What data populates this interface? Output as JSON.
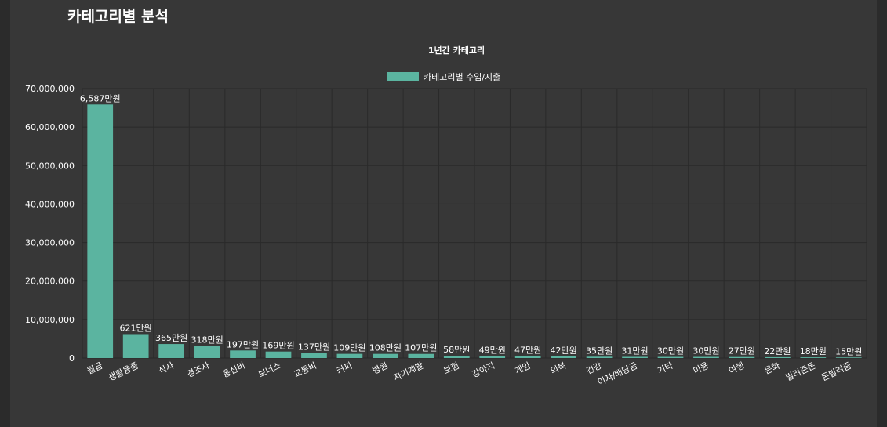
{
  "page": {
    "title": "카테고리별 분석"
  },
  "colors": {
    "bar": "#5bb4a0",
    "panel": "#373737",
    "background": "#2b2b2b",
    "grid": "#2a2a2a",
    "text": "#ffffff"
  },
  "chart_data": {
    "type": "bar",
    "title": "1년간 카테고리",
    "legend": {
      "label": "카테고리별 수입/지출",
      "position": "top"
    },
    "xlabel": "",
    "ylabel": "",
    "ylim": [
      0,
      70000000
    ],
    "yticks": [
      0,
      10000000,
      20000000,
      30000000,
      40000000,
      50000000,
      60000000,
      70000000
    ],
    "ytick_labels": [
      "0",
      "10,000,000",
      "20,000,000",
      "30,000,000",
      "40,000,000",
      "50,000,000",
      "60,000,000",
      "70,000,000"
    ],
    "grid": true,
    "categories": [
      "월급",
      "생활용품",
      "식사",
      "경조사",
      "통신비",
      "보너스",
      "교통비",
      "커피",
      "병원",
      "자기계발",
      "보험",
      "강아지",
      "게임",
      "의복",
      "건강",
      "이자/배당금",
      "기타",
      "미용",
      "여행",
      "문화",
      "빌려준돈",
      "돈빌려줌"
    ],
    "values": [
      65870000,
      6210000,
      3650000,
      3180000,
      1970000,
      1690000,
      1370000,
      1090000,
      1080000,
      1070000,
      580000,
      490000,
      470000,
      420000,
      350000,
      310000,
      300000,
      300000,
      270000,
      220000,
      180000,
      150000
    ],
    "data_labels": [
      "6,587만원",
      "621만원",
      "365만원",
      "318만원",
      "197만원",
      "169만원",
      "137만원",
      "109만원",
      "108만원",
      "107만원",
      "58만원",
      "49만원",
      "47만원",
      "42만원",
      "35만원",
      "31만원",
      "30만원",
      "30만원",
      "27만원",
      "22만원",
      "18만원",
      "15만원"
    ]
  }
}
